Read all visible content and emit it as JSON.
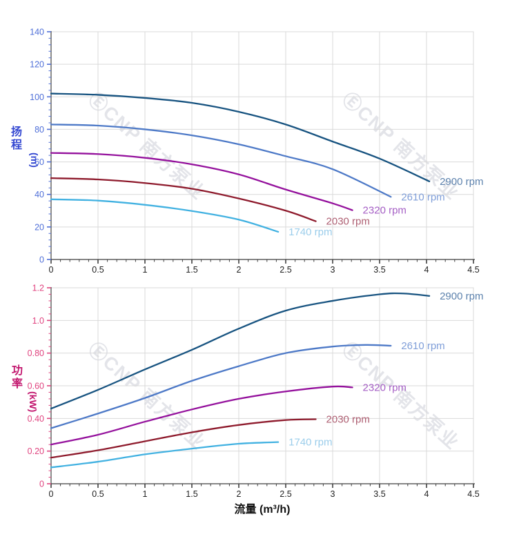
{
  "watermark": {
    "text": "ⒺCNP 南方泵业",
    "color": "#b6bac6"
  },
  "colors": {
    "grid": "#d9d9d9",
    "spine": "#3f3f3f",
    "x_tick_label": "#222222",
    "x_title": "#111111"
  },
  "chart_data": [
    {
      "type": "line",
      "title": "",
      "xlabel": "流量 (m³/h)",
      "ylabel": "扬程 (m)",
      "y_title_chars": [
        "扬",
        "程"
      ],
      "y_unit": "(m)",
      "y_title_color": "#3347d1",
      "y_tick_color": "#4f6fd8",
      "xlim": [
        0,
        4.5
      ],
      "ylim": [
        0,
        140
      ],
      "x_major_tick": 0.5,
      "x_minor_tick": 0.1,
      "y_major_tick": 20,
      "y_minor_tick": 4,
      "x_tick_labels": [
        "0",
        "0.5",
        "1",
        "1.5",
        "2",
        "2.5",
        "3",
        "3.5",
        "4",
        "4.5"
      ],
      "y_tick_labels": [
        "0",
        "20",
        "40",
        "60",
        "80",
        "100",
        "120",
        "140"
      ],
      "grid": true,
      "legend_position": "at-line-end",
      "series": [
        {
          "name": "2900 rpm",
          "color": "#175380",
          "label_color": "#5d82ad",
          "points": [
            [
              0,
              102
            ],
            [
              0.5,
              101.2
            ],
            [
              1,
              99.3
            ],
            [
              1.5,
              96.3
            ],
            [
              2,
              90.8
            ],
            [
              2.5,
              83
            ],
            [
              3,
              72.5
            ],
            [
              3.5,
              62
            ],
            [
              4.03,
              48
            ]
          ]
        },
        {
          "name": "2610 rpm",
          "color": "#4d79c7",
          "label_color": "#7f9ed8",
          "points": [
            [
              0,
              83
            ],
            [
              0.5,
              82.3
            ],
            [
              1,
              80
            ],
            [
              1.5,
              76.3
            ],
            [
              2,
              70.8
            ],
            [
              2.5,
              63.5
            ],
            [
              3,
              55.5
            ],
            [
              3.62,
              38.5
            ]
          ]
        },
        {
          "name": "2320 rpm",
          "color": "#94109c",
          "label_color": "#a55fc5",
          "points": [
            [
              0,
              65.5
            ],
            [
              0.5,
              64.8
            ],
            [
              1,
              62.5
            ],
            [
              1.5,
              58.5
            ],
            [
              2,
              52.3
            ],
            [
              2.5,
              43
            ],
            [
              3,
              34.5
            ],
            [
              3.21,
              30.3
            ]
          ]
        },
        {
          "name": "2030 rpm",
          "color": "#8e1a2c",
          "label_color": "#ae5f72",
          "points": [
            [
              0,
              50
            ],
            [
              0.5,
              49.2
            ],
            [
              1,
              47
            ],
            [
              1.5,
              43.5
            ],
            [
              2,
              37.5
            ],
            [
              2.5,
              30
            ],
            [
              2.82,
              23.5
            ]
          ]
        },
        {
          "name": "1740 rpm",
          "color": "#41b1e1",
          "label_color": "#9bcdeb",
          "points": [
            [
              0,
              37
            ],
            [
              0.5,
              36.2
            ],
            [
              1,
              33.6
            ],
            [
              1.5,
              29.8
            ],
            [
              2,
              24.5
            ],
            [
              2.42,
              17
            ]
          ]
        }
      ]
    },
    {
      "type": "line",
      "title": "",
      "xlabel": "流量 (m³/h)",
      "ylabel": "功率 (kW)",
      "y_title_chars": [
        "功",
        "率"
      ],
      "y_unit": "(kW)",
      "y_title_color": "#c2166e",
      "y_tick_color": "#e0437f",
      "xlim": [
        0,
        4.5
      ],
      "ylim": [
        0,
        1.2
      ],
      "x_major_tick": 0.5,
      "x_minor_tick": 0.1,
      "y_major_tick": 0.2,
      "y_minor_tick": 0.04,
      "x_tick_labels": [
        "0",
        "0.5",
        "1",
        "1.5",
        "2",
        "2.5",
        "3",
        "3.5",
        "4",
        "4.5"
      ],
      "y_tick_labels": [
        "0",
        "0.20",
        "0.40",
        "0.60",
        "0.80",
        "1.0",
        "1.2"
      ],
      "grid": true,
      "legend_position": "at-line-end",
      "series": [
        {
          "name": "2900 rpm",
          "color": "#175380",
          "label_color": "#5d82ad",
          "points": [
            [
              0,
              0.46
            ],
            [
              0.5,
              0.575
            ],
            [
              1,
              0.7
            ],
            [
              1.5,
              0.82
            ],
            [
              2,
              0.95
            ],
            [
              2.5,
              1.06
            ],
            [
              3,
              1.12
            ],
            [
              3.5,
              1.16
            ],
            [
              3.75,
              1.165
            ],
            [
              4.03,
              1.15
            ]
          ]
        },
        {
          "name": "2610 rpm",
          "color": "#4d79c7",
          "label_color": "#7f9ed8",
          "points": [
            [
              0,
              0.34
            ],
            [
              0.5,
              0.43
            ],
            [
              1,
              0.525
            ],
            [
              1.5,
              0.63
            ],
            [
              2,
              0.72
            ],
            [
              2.5,
              0.8
            ],
            [
              3,
              0.84
            ],
            [
              3.35,
              0.85
            ],
            [
              3.62,
              0.845
            ]
          ]
        },
        {
          "name": "2320 rpm",
          "color": "#94109c",
          "label_color": "#a55fc5",
          "points": [
            [
              0,
              0.24
            ],
            [
              0.5,
              0.3
            ],
            [
              1,
              0.38
            ],
            [
              1.5,
              0.455
            ],
            [
              2,
              0.52
            ],
            [
              2.5,
              0.565
            ],
            [
              3,
              0.595
            ],
            [
              3.21,
              0.59
            ]
          ]
        },
        {
          "name": "2030 rpm",
          "color": "#8e1a2c",
          "label_color": "#ae5f72",
          "points": [
            [
              0,
              0.16
            ],
            [
              0.5,
              0.205
            ],
            [
              1,
              0.26
            ],
            [
              1.5,
              0.315
            ],
            [
              2,
              0.36
            ],
            [
              2.5,
              0.39
            ],
            [
              2.82,
              0.395
            ]
          ]
        },
        {
          "name": "1740 rpm",
          "color": "#41b1e1",
          "label_color": "#9bcdeb",
          "points": [
            [
              0,
              0.1
            ],
            [
              0.5,
              0.135
            ],
            [
              1,
              0.18
            ],
            [
              1.5,
              0.215
            ],
            [
              2,
              0.245
            ],
            [
              2.42,
              0.255
            ]
          ]
        }
      ]
    }
  ]
}
